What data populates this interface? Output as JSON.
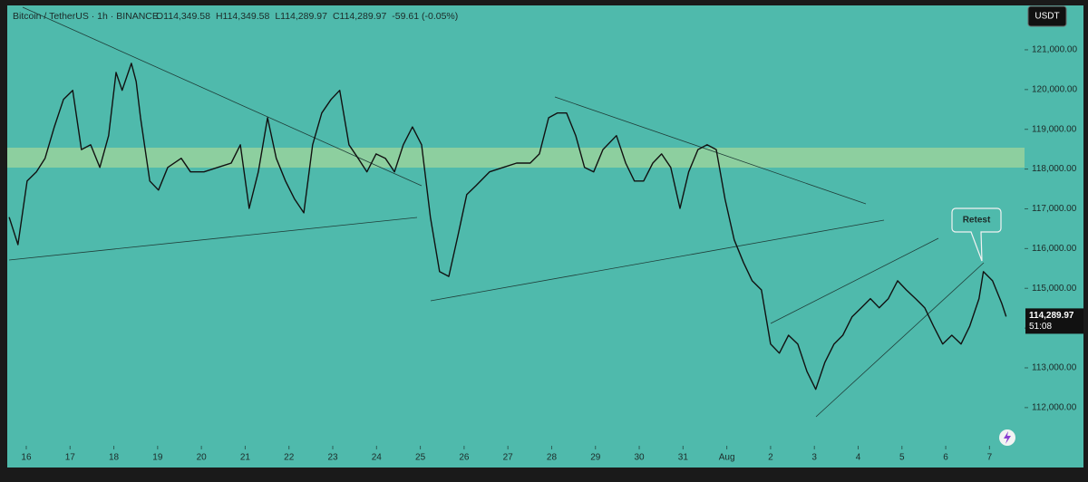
{
  "chart_data": {
    "type": "line",
    "title": "Bitcoin / TetherUS · 1h · BINANCE",
    "ohlc": [
      "O114,349.58",
      "H114,349.58",
      "L114,289.97",
      "C114,289.97",
      "-59.61 (-0.05%)"
    ],
    "currency": "USDT",
    "annotation": "Retest",
    "last_price": {
      "value": 114289.97,
      "label": "114,289.97"
    },
    "countdown": "51:08",
    "xlim": [
      -0.6,
      22.8
    ],
    "xticks": [
      {
        "value": 0,
        "label": "16"
      },
      {
        "value": 1,
        "label": "17"
      },
      {
        "value": 2,
        "label": "18"
      },
      {
        "value": 3,
        "label": "19"
      },
      {
        "value": 4,
        "label": "20"
      },
      {
        "value": 5,
        "label": "21"
      },
      {
        "value": 6,
        "label": "22"
      },
      {
        "value": 7,
        "label": "23"
      },
      {
        "value": 8,
        "label": "24"
      },
      {
        "value": 9,
        "label": "25"
      },
      {
        "value": 10,
        "label": "26"
      },
      {
        "value": 11,
        "label": "27"
      },
      {
        "value": 12,
        "label": "28"
      },
      {
        "value": 13,
        "label": "29"
      },
      {
        "value": 14,
        "label": "30"
      },
      {
        "value": 15,
        "label": "31"
      },
      {
        "value": 16,
        "label": "Aug"
      },
      {
        "value": 17,
        "label": "2"
      },
      {
        "value": 18,
        "label": "3"
      },
      {
        "value": 19,
        "label": "4"
      },
      {
        "value": 20,
        "label": "5"
      },
      {
        "value": 21,
        "label": "6"
      },
      {
        "value": 22,
        "label": "7"
      }
    ],
    "ylim": [
      111040,
      122070
    ],
    "yticks": [
      {
        "value": 112000,
        "label": "112,000.00"
      },
      {
        "value": 113000,
        "label": "113,000.00"
      },
      {
        "value": 114000,
        "label": "114,000.00"
      },
      {
        "value": 115000,
        "label": "115,000.00"
      },
      {
        "value": 116000,
        "label": "116,000.00"
      },
      {
        "value": 117000,
        "label": "117,000.00"
      },
      {
        "value": 118000,
        "label": "118,000.00"
      },
      {
        "value": 119000,
        "label": "119,000.00"
      },
      {
        "value": 120000,
        "label": "120,000.00"
      },
      {
        "value": 121000,
        "label": "121,000.00"
      }
    ],
    "grid": false,
    "series": [
      {
        "name": "BTCUSDT",
        "color": "#111111",
        "x": [
          -0.39,
          -0.19,
          0.02,
          0.23,
          0.43,
          0.64,
          0.85,
          1.06,
          1.26,
          1.47,
          1.68,
          1.88,
          2.05,
          2.19,
          2.4,
          2.51,
          2.61,
          2.82,
          3.02,
          3.23,
          3.54,
          3.75,
          4.06,
          4.37,
          4.68,
          4.89,
          5.09,
          5.3,
          5.51,
          5.71,
          5.92,
          6.13,
          6.34,
          6.54,
          6.75,
          6.96,
          7.16,
          7.37,
          7.58,
          7.78,
          7.99,
          8.2,
          8.41,
          8.61,
          8.82,
          9.03,
          9.23,
          9.44,
          9.65,
          9.86,
          10.06,
          10.27,
          10.58,
          10.89,
          11.2,
          11.51,
          11.72,
          11.93,
          12.13,
          12.34,
          12.55,
          12.75,
          12.96,
          13.17,
          13.48,
          13.69,
          13.89,
          14.1,
          14.31,
          14.51,
          14.72,
          14.93,
          15.13,
          15.34,
          15.55,
          15.76,
          15.96,
          16.17,
          16.38,
          16.58,
          16.79,
          17.0,
          17.2,
          17.41,
          17.62,
          17.83,
          18.03,
          18.24,
          18.45,
          18.65,
          18.86,
          19.07,
          19.28,
          19.48,
          19.69,
          19.9,
          20.1,
          20.31,
          20.52,
          20.72,
          20.93,
          21.14,
          21.35,
          21.55,
          21.76,
          21.86,
          22.07,
          22.28,
          22.38
        ],
        "values": [
          116790,
          116100,
          117700,
          117930,
          118270,
          119060,
          119750,
          119980,
          118490,
          118610,
          118040,
          118840,
          120430,
          119980,
          120660,
          120200,
          119290,
          117700,
          117470,
          118040,
          118270,
          117930,
          117930,
          118040,
          118150,
          118610,
          117010,
          117930,
          119290,
          118270,
          117700,
          117240,
          116900,
          118610,
          119410,
          119750,
          119980,
          118610,
          118270,
          117930,
          118380,
          118270,
          117930,
          118610,
          119060,
          118610,
          116790,
          115420,
          115300,
          116330,
          117360,
          117580,
          117930,
          118040,
          118150,
          118150,
          118380,
          119290,
          119410,
          119410,
          118840,
          118040,
          117930,
          118490,
          118840,
          118150,
          117700,
          117700,
          118150,
          118380,
          118040,
          117010,
          117930,
          118490,
          118610,
          118490,
          117240,
          116220,
          115650,
          115190,
          114960,
          113600,
          113370,
          113820,
          113600,
          112910,
          112460,
          113140,
          113600,
          113820,
          114280,
          114510,
          114740,
          114510,
          114740,
          115190,
          114960,
          114740,
          114510,
          114050,
          113600,
          113820,
          113600,
          114050,
          114740,
          115420,
          115190,
          114620,
          114289.97
        ]
      }
    ]
  }
}
